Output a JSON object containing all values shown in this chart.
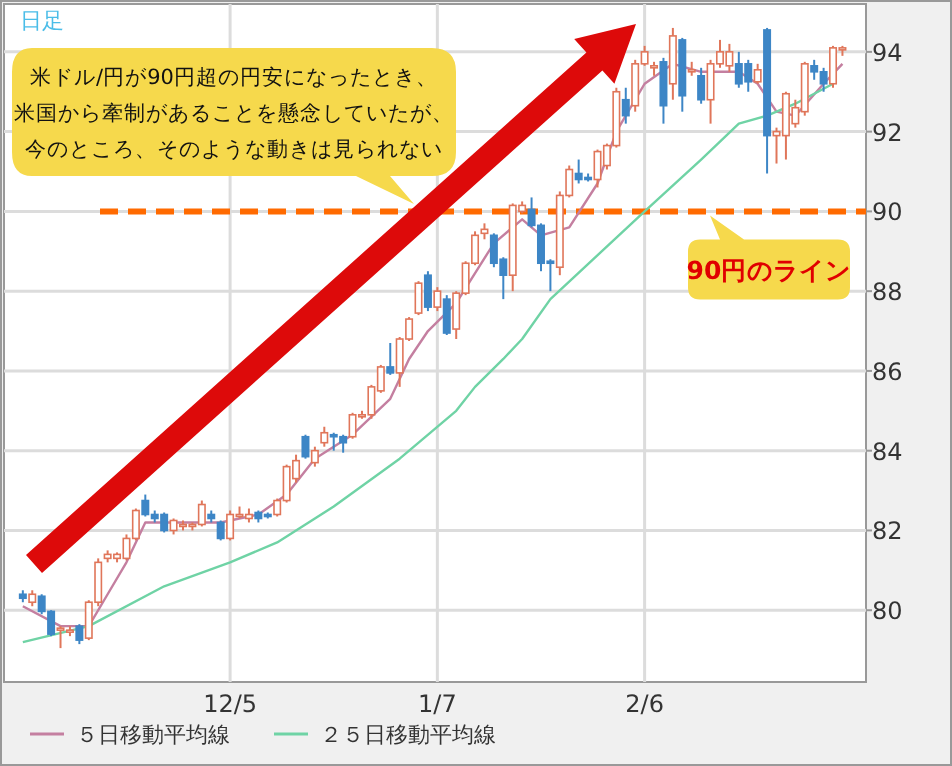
{
  "chart_data": {
    "type": "candlestick",
    "categories": [
      null,
      null,
      null,
      null,
      null,
      null,
      null,
      null,
      null,
      null,
      null,
      null,
      null,
      null,
      null,
      null,
      null,
      null,
      null,
      null,
      null,
      null,
      "12/5",
      null,
      null,
      null,
      null,
      null,
      null,
      null,
      null,
      null,
      null,
      null,
      null,
      null,
      null,
      null,
      null,
      null,
      null,
      null,
      null,
      null,
      "1/7",
      null,
      null,
      null,
      null,
      null,
      null,
      null,
      null,
      null,
      null,
      null,
      null,
      null,
      null,
      null,
      null,
      null,
      null,
      null,
      null,
      null,
      "2/6",
      null,
      null,
      null,
      null,
      null,
      null,
      null,
      null,
      null,
      null,
      null,
      null,
      null,
      null,
      null,
      null,
      null,
      null,
      null,
      null,
      null
    ],
    "ohlc": [
      [
        80.4,
        80.5,
        80.2,
        80.3
      ],
      [
        80.2,
        80.5,
        80.1,
        80.4
      ],
      [
        80.35,
        80.4,
        79.9,
        79.97
      ],
      [
        79.97,
        80.0,
        79.35,
        79.4
      ],
      [
        79.5,
        79.6,
        79.05,
        79.55
      ],
      [
        79.45,
        79.6,
        79.35,
        79.5
      ],
      [
        79.6,
        79.65,
        79.15,
        79.25
      ],
      [
        79.3,
        80.25,
        79.25,
        80.2
      ],
      [
        80.2,
        81.3,
        80.1,
        81.2
      ],
      [
        81.3,
        81.5,
        81.2,
        81.4
      ],
      [
        81.3,
        81.45,
        81.2,
        81.4
      ],
      [
        81.3,
        81.9,
        81.25,
        81.8
      ],
      [
        81.8,
        82.55,
        81.75,
        82.5
      ],
      [
        82.75,
        82.9,
        82.35,
        82.4
      ],
      [
        82.4,
        82.5,
        82.2,
        82.3
      ],
      [
        82.4,
        82.45,
        81.95,
        82.0
      ],
      [
        82.0,
        82.3,
        81.9,
        82.25
      ],
      [
        82.1,
        82.25,
        82.0,
        82.15
      ],
      [
        82.1,
        82.2,
        82.0,
        82.15
      ],
      [
        82.15,
        82.75,
        82.1,
        82.65
      ],
      [
        82.4,
        82.5,
        82.2,
        82.3
      ],
      [
        82.2,
        82.25,
        81.75,
        81.8
      ],
      [
        81.8,
        82.5,
        81.75,
        82.4
      ],
      [
        82.35,
        82.6,
        82.3,
        82.4
      ],
      [
        82.3,
        82.55,
        82.2,
        82.4
      ],
      [
        82.45,
        82.5,
        82.2,
        82.3
      ],
      [
        82.4,
        82.45,
        82.3,
        82.35
      ],
      [
        82.4,
        82.8,
        82.35,
        82.75
      ],
      [
        82.75,
        83.65,
        82.7,
        83.6
      ],
      [
        83.3,
        83.9,
        83.2,
        83.75
      ],
      [
        84.35,
        84.4,
        83.8,
        83.85
      ],
      [
        83.7,
        84.1,
        83.6,
        84.0
      ],
      [
        84.2,
        84.6,
        84.1,
        84.45
      ],
      [
        84.4,
        84.45,
        84.0,
        84.35
      ],
      [
        84.35,
        84.4,
        83.95,
        84.2
      ],
      [
        84.35,
        84.95,
        84.3,
        84.9
      ],
      [
        84.85,
        85.0,
        84.8,
        84.9
      ],
      [
        84.9,
        85.65,
        84.8,
        85.6
      ],
      [
        85.5,
        86.15,
        85.45,
        86.1
      ],
      [
        86.1,
        86.7,
        85.9,
        85.95
      ],
      [
        85.95,
        86.85,
        85.6,
        86.8
      ],
      [
        86.8,
        87.35,
        86.75,
        87.3
      ],
      [
        87.45,
        88.25,
        87.4,
        88.2
      ],
      [
        88.4,
        88.5,
        87.5,
        87.6
      ],
      [
        87.6,
        88.1,
        87.5,
        88.0
      ],
      [
        87.8,
        87.9,
        86.9,
        86.95
      ],
      [
        87.05,
        88.0,
        86.8,
        87.95
      ],
      [
        87.95,
        88.75,
        87.9,
        88.7
      ],
      [
        88.7,
        89.5,
        88.65,
        89.4
      ],
      [
        89.45,
        89.7,
        89.3,
        89.55
      ],
      [
        89.4,
        89.45,
        88.6,
        88.7
      ],
      [
        88.8,
        88.85,
        87.8,
        88.4
      ],
      [
        88.4,
        90.2,
        88.0,
        90.15
      ],
      [
        90.0,
        90.25,
        89.95,
        90.15
      ],
      [
        90.05,
        90.35,
        89.6,
        89.65
      ],
      [
        89.65,
        89.7,
        88.5,
        88.7
      ],
      [
        88.75,
        88.8,
        88.0,
        88.7
      ],
      [
        88.6,
        90.5,
        88.4,
        90.4
      ],
      [
        90.4,
        91.15,
        90.35,
        91.05
      ],
      [
        90.95,
        91.3,
        90.7,
        90.8
      ],
      [
        90.85,
        90.95,
        90.75,
        90.8
      ],
      [
        90.8,
        91.55,
        90.6,
        91.5
      ],
      [
        91.15,
        91.7,
        91.05,
        91.65
      ],
      [
        91.65,
        93.1,
        91.6,
        93.0
      ],
      [
        92.8,
        93.1,
        92.2,
        92.4
      ],
      [
        92.65,
        93.8,
        92.5,
        93.7
      ],
      [
        93.7,
        94.15,
        93.65,
        94.0
      ],
      [
        93.6,
        93.75,
        93.4,
        93.65
      ],
      [
        93.75,
        93.85,
        92.2,
        92.65
      ],
      [
        93.2,
        94.6,
        92.8,
        94.4
      ],
      [
        94.3,
        94.35,
        92.5,
        92.9
      ],
      [
        93.5,
        93.75,
        93.4,
        93.55
      ],
      [
        93.4,
        93.6,
        92.7,
        92.8
      ],
      [
        92.8,
        93.8,
        92.2,
        93.7
      ],
      [
        93.7,
        94.3,
        93.6,
        94.0
      ],
      [
        93.65,
        94.2,
        93.5,
        94.0
      ],
      [
        93.7,
        94.0,
        93.1,
        93.2
      ],
      [
        93.7,
        93.8,
        93.0,
        93.25
      ],
      [
        93.25,
        93.7,
        93.2,
        93.55
      ],
      [
        94.55,
        94.6,
        90.95,
        91.9
      ],
      [
        91.9,
        92.1,
        91.2,
        92.0
      ],
      [
        91.9,
        93.0,
        91.3,
        92.95
      ],
      [
        92.2,
        92.8,
        92.1,
        92.6
      ],
      [
        92.5,
        93.75,
        92.4,
        93.7
      ],
      [
        93.65,
        93.8,
        93.3,
        93.5
      ],
      [
        93.5,
        93.6,
        93.0,
        93.2
      ],
      [
        93.2,
        94.15,
        93.1,
        94.1
      ],
      [
        94.1,
        94.15,
        93.9,
        94.1
      ]
    ],
    "series": [
      {
        "name": "５日移動平均線",
        "type": "line",
        "color": "#c47fa0",
        "values": [
          80.1,
          null,
          null,
          null,
          79.6,
          null,
          null,
          79.6,
          null,
          80.4,
          null,
          81.2,
          null,
          82.2,
          null,
          82.2,
          null,
          null,
          82.2,
          null,
          null,
          82.2,
          null,
          null,
          null,
          82.4,
          null,
          null,
          82.9,
          null,
          null,
          83.8,
          null,
          null,
          null,
          84.4,
          null,
          null,
          null,
          85.3,
          null,
          86.3,
          null,
          87.0,
          null,
          null,
          87.7,
          null,
          null,
          null,
          89.2,
          null,
          null,
          89.8,
          null,
          89.4,
          null,
          null,
          89.6,
          null,
          null,
          90.7,
          null,
          92.0,
          null,
          null,
          93.2,
          null,
          null,
          93.7,
          null,
          null,
          93.5,
          null,
          null,
          null,
          93.5,
          null,
          93.2,
          null,
          92.5,
          null,
          92.4,
          null,
          null,
          93.2,
          null,
          93.7
        ]
      },
      {
        "name": "２５日移動平均線",
        "type": "line",
        "color": "#6fd3a5",
        "values": [
          79.2,
          null,
          null,
          null,
          null,
          null,
          null,
          79.6,
          null,
          null,
          null,
          null,
          null,
          null,
          null,
          80.6,
          null,
          null,
          null,
          null,
          null,
          null,
          81.2,
          null,
          null,
          null,
          null,
          81.7,
          null,
          null,
          null,
          null,
          null,
          82.6,
          null,
          null,
          null,
          null,
          null,
          null,
          83.8,
          null,
          null,
          null,
          null,
          null,
          85.0,
          null,
          85.6,
          null,
          null,
          86.3,
          null,
          86.8,
          null,
          null,
          87.8,
          null,
          null,
          null,
          null,
          null,
          null,
          null,
          null,
          null,
          90.0,
          null,
          null,
          null,
          null,
          null,
          91.3,
          null,
          null,
          null,
          92.2,
          null,
          null,
          92.4,
          null,
          null,
          92.7,
          null,
          null,
          null,
          93.2,
          null
        ]
      }
    ],
    "ylim": [
      78.2,
      95.2
    ],
    "yticks": [
      80,
      82,
      84,
      86,
      88,
      90,
      92,
      94
    ],
    "grid": true,
    "legend": "bottom",
    "ref_lines": [
      {
        "axis": "y",
        "value": 90,
        "label": "90円のライン",
        "color": "#ff6a00",
        "line_style": "dashed"
      }
    ],
    "annotations": [
      "日足",
      "米ドル/円が90円超の円安になったとき、米国から牽制があることを懸念していたが、今のところ、そのような動きは見られない"
    ]
  }
}
